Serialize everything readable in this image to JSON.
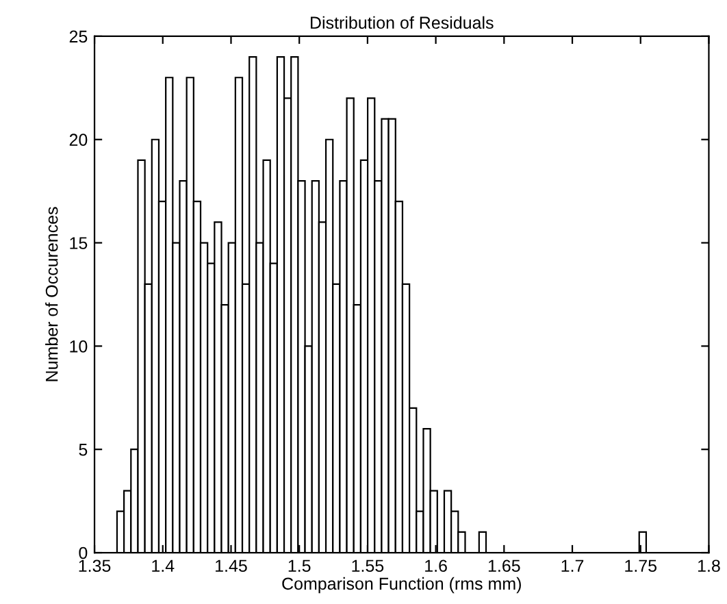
{
  "chart_data": {
    "type": "histogram",
    "title": "Distribution of Residuals",
    "xlabel": "Comparison Function (rms mm)",
    "ylabel": "Number of Occurences",
    "bins": [
      1.3665,
      1.3716,
      1.3767,
      1.3818,
      1.3869,
      1.392,
      1.3971,
      1.4022,
      1.4073,
      1.4124,
      1.4175,
      1.4226,
      1.4277,
      1.4328,
      1.4379,
      1.443,
      1.4481,
      1.4532,
      1.4583,
      1.4634,
      1.4685,
      1.4736,
      1.4787,
      1.4838,
      1.4889,
      1.494,
      1.4991,
      1.5042,
      1.5093,
      1.5144,
      1.5195,
      1.5246,
      1.5297,
      1.5348,
      1.5399,
      1.545,
      1.5501,
      1.5552,
      1.5603,
      1.5654,
      1.5705,
      1.5756,
      1.5807,
      1.5858,
      1.5909,
      1.596,
      1.6011,
      1.6062,
      1.6113,
      1.6164,
      1.6215,
      1.6266,
      1.6317,
      1.6368,
      1.6419,
      1.647,
      1.6521,
      1.6572,
      1.6623,
      1.6674,
      1.6725,
      1.6776,
      1.6827,
      1.6878,
      1.6929,
      1.698,
      1.7031,
      1.7082,
      1.7133,
      1.7184,
      1.7235,
      1.7286,
      1.7337,
      1.7388,
      1.7439,
      1.749,
      1.7541
    ],
    "values": [
      2,
      3,
      5,
      19,
      13,
      20,
      17,
      23,
      15,
      18,
      23,
      17,
      15,
      14,
      16,
      12,
      15,
      23,
      13,
      24,
      15,
      19,
      14,
      24,
      22,
      24,
      18,
      10,
      18,
      16,
      20,
      13,
      18,
      22,
      12,
      19,
      22,
      18,
      21,
      21,
      17,
      13,
      7,
      2,
      6,
      3,
      0,
      3,
      2,
      1,
      0,
      0,
      1,
      0,
      0,
      0,
      0,
      0,
      0,
      0,
      0,
      0,
      0,
      0,
      0,
      0,
      0,
      0,
      0,
      0,
      0,
      0,
      0,
      0,
      0,
      1
    ],
    "color": "#ffffff",
    "xlim": [
      1.35,
      1.8
    ],
    "xticks": [
      1.35,
      1.4,
      1.45,
      1.5,
      1.55,
      1.6,
      1.65,
      1.7,
      1.75,
      1.8
    ],
    "ylim": [
      0,
      25
    ],
    "yticks": [
      0,
      5,
      10,
      15,
      20,
      25
    ],
    "grid": false
  }
}
